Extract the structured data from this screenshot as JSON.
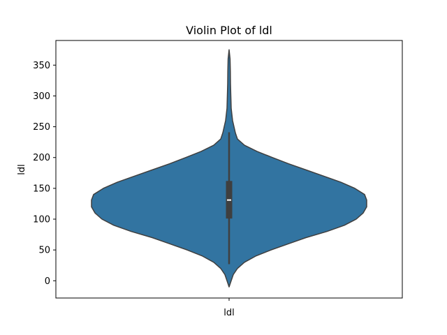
{
  "chart_data": {
    "type": "violin",
    "title": "Violin Plot of ldl",
    "xlabel": "",
    "ylabel": "ldl",
    "categories": [
      "ldl"
    ],
    "ylim": [
      -28,
      390
    ],
    "yticks": [
      0,
      50,
      100,
      150,
      200,
      250,
      300,
      350
    ],
    "grid": false,
    "legend": "none",
    "violin": {
      "min": -10,
      "max": 375,
      "q1": 101,
      "median": 131,
      "q3": 162,
      "whisker_low": 27,
      "whisker_high": 241,
      "max_half_width": 197,
      "profile": [
        [
          -10,
          0
        ],
        [
          0,
          3
        ],
        [
          10,
          6
        ],
        [
          20,
          12
        ],
        [
          30,
          22
        ],
        [
          40,
          38
        ],
        [
          50,
          60
        ],
        [
          60,
          85
        ],
        [
          70,
          110
        ],
        [
          80,
          140
        ],
        [
          90,
          165
        ],
        [
          100,
          182
        ],
        [
          110,
          192
        ],
        [
          120,
          197
        ],
        [
          131,
          197
        ],
        [
          140,
          194
        ],
        [
          150,
          180
        ],
        [
          160,
          160
        ],
        [
          170,
          135
        ],
        [
          180,
          110
        ],
        [
          190,
          85
        ],
        [
          200,
          62
        ],
        [
          210,
          40
        ],
        [
          220,
          22
        ],
        [
          230,
          12
        ],
        [
          240,
          9
        ],
        [
          250,
          7
        ],
        [
          260,
          5
        ],
        [
          270,
          4
        ],
        [
          280,
          3
        ],
        [
          300,
          2.5
        ],
        [
          320,
          2
        ],
        [
          340,
          1.8
        ],
        [
          360,
          1.4
        ],
        [
          375,
          0
        ]
      ]
    },
    "colors": {
      "violin_fill": "#3274a1",
      "violin_edge": "#3f3f3f",
      "box_fill": "#3f3f3f",
      "median": "#ffffff"
    }
  }
}
